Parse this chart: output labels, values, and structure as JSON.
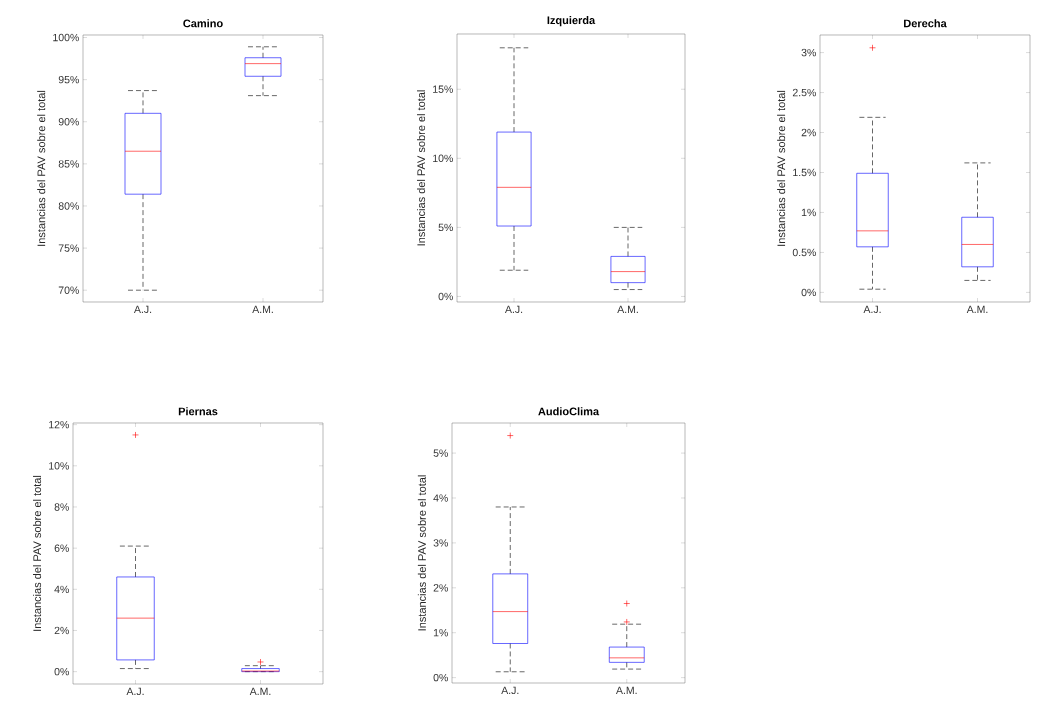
{
  "chart_data": [
    {
      "type": "box",
      "title": "Camino",
      "ylabel": "Instancias del PAV sobre el total",
      "categories": [
        "A.J.",
        "A.M."
      ],
      "color": "#0000ff",
      "ylim": [
        68.6,
        100.3
      ],
      "yticks": [
        {
          "value": 70,
          "label": "70%"
        },
        {
          "value": 75,
          "label": "75%"
        },
        {
          "value": 80,
          "label": "80%"
        },
        {
          "value": 85,
          "label": "85%"
        },
        {
          "value": 90,
          "label": "90%"
        },
        {
          "value": 95,
          "label": "95%"
        },
        {
          "value": 100,
          "label": "100%"
        }
      ],
      "boxes": [
        {
          "low": 70,
          "q1": 81.4,
          "median": 86.5,
          "q3": 91.0,
          "high": 93.7
        },
        {
          "low": 93.1,
          "q1": 95.4,
          "median": 96.9,
          "q3": 97.6,
          "high": 98.9
        }
      ]
    },
    {
      "type": "box",
      "title": "Izquierda",
      "ylabel": "Instancias del PAV sobre el total",
      "categories": [
        "A.J.",
        "A.M."
      ],
      "color": "#0000ff",
      "ylim": [
        -0.4,
        19
      ],
      "yticks": [
        {
          "value": 0,
          "label": "0%"
        },
        {
          "value": 5,
          "label": "5%"
        },
        {
          "value": 10,
          "label": "10%"
        },
        {
          "value": 15,
          "label": "15%"
        }
      ],
      "boxes": [
        {
          "low": 1.9,
          "q1": 5.1,
          "median": 7.9,
          "q3": 11.9,
          "high": 18.0
        },
        {
          "low": 0.5,
          "q1": 1.0,
          "median": 1.8,
          "q3": 2.9,
          "high": 5.0
        }
      ]
    },
    {
      "type": "box",
      "title": "Derecha",
      "ylabel": "Instancias del PAV sobre el total",
      "categories": [
        "A.J.",
        "A.M."
      ],
      "color": "#0000ff",
      "ylim": [
        -0.12,
        3.22
      ],
      "yticks": [
        {
          "value": 0,
          "label": "0%"
        },
        {
          "value": 0.5,
          "label": "0.5%"
        },
        {
          "value": 1,
          "label": "1%"
        },
        {
          "value": 1.5,
          "label": "1.5%"
        },
        {
          "value": 2,
          "label": "2%"
        },
        {
          "value": 2.5,
          "label": "2.5%"
        },
        {
          "value": 3,
          "label": "3%"
        }
      ],
      "boxes": [
        {
          "low": 0.04,
          "q1": 0.57,
          "median": 0.77,
          "q3": 1.49,
          "high": 2.19,
          "outliers": [
            3.06
          ]
        },
        {
          "low": 0.15,
          "q1": 0.32,
          "median": 0.6,
          "q3": 0.94,
          "high": 1.62
        }
      ]
    },
    {
      "type": "box",
      "title": "Piernas",
      "ylabel": "Instancias del PAV sobre el total",
      "categories": [
        "A.J.",
        "A.M."
      ],
      "color": "#0000ff",
      "ylim": [
        -0.6,
        12.08
      ],
      "yticks": [
        {
          "value": 0,
          "label": "0%"
        },
        {
          "value": 2,
          "label": "2%"
        },
        {
          "value": 4,
          "label": "4%"
        },
        {
          "value": 6,
          "label": "6%"
        },
        {
          "value": 8,
          "label": "8%"
        },
        {
          "value": 10,
          "label": "10%"
        },
        {
          "value": 12,
          "label": "12%"
        }
      ],
      "boxes": [
        {
          "low": 0.15,
          "q1": 0.57,
          "median": 2.6,
          "q3": 4.6,
          "high": 6.1,
          "outliers": [
            11.5
          ]
        },
        {
          "low": 0,
          "q1": 0,
          "median": 0.03,
          "q3": 0.15,
          "high": 0.29,
          "outliers": [
            0.47
          ]
        }
      ]
    },
    {
      "type": "box",
      "title": "AudioClima",
      "ylabel": "Instancias del PAV sobre el total",
      "categories": [
        "A.J.",
        "A.M."
      ],
      "color": "#0000ff",
      "ylim": [
        -0.12,
        5.67
      ],
      "yticks": [
        {
          "value": 0,
          "label": "0%"
        },
        {
          "value": 1,
          "label": "1%"
        },
        {
          "value": 2,
          "label": "2%"
        },
        {
          "value": 3,
          "label": "3%"
        },
        {
          "value": 4,
          "label": "4%"
        },
        {
          "value": 5,
          "label": "5%"
        }
      ],
      "boxes": [
        {
          "low": 0.13,
          "q1": 0.76,
          "median": 1.47,
          "q3": 2.31,
          "high": 3.8,
          "outliers": [
            5.39
          ]
        },
        {
          "low": 0.19,
          "q1": 0.34,
          "median": 0.44,
          "q3": 0.68,
          "high": 1.19,
          "outliers": [
            1.24,
            1.65
          ]
        }
      ]
    }
  ]
}
